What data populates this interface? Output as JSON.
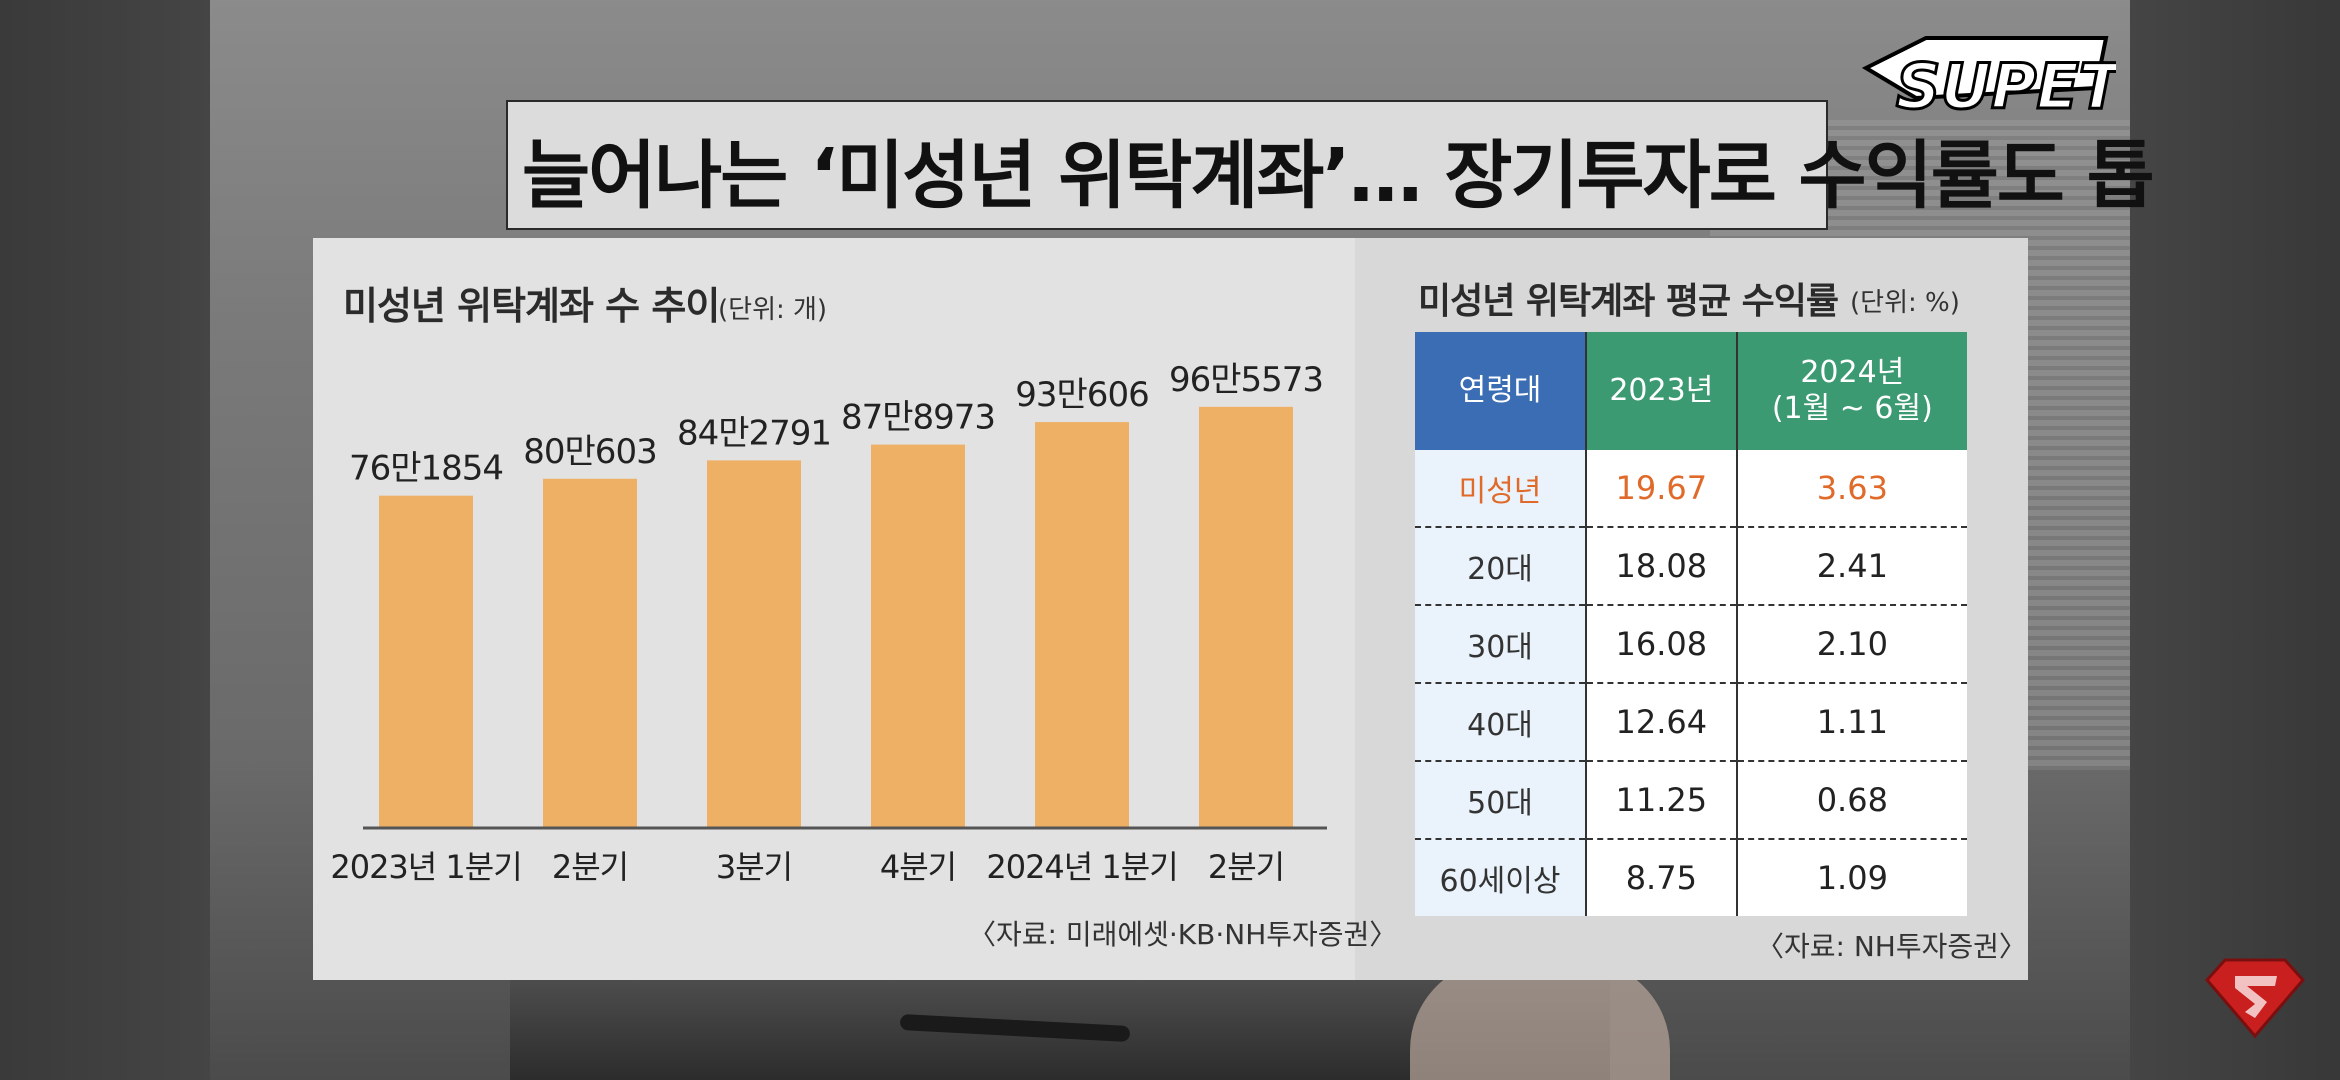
{
  "headline": "늘어나는 ‘미성년 위탁계좌’… 장기투자로 수익률도 톱",
  "logo_text": "SUPETV",
  "chart_data": {
    "type": "bar",
    "title": "미성년 위탁계좌 수 추이",
    "unit": "(단위: 개)",
    "categories": [
      "2023년 1분기",
      "2분기",
      "3분기",
      "4분기",
      "2024년 1분기",
      "2분기"
    ],
    "values": [
      761854,
      800603,
      842791,
      878973,
      930606,
      965573
    ],
    "data_labels": [
      "76만1854",
      "80만603",
      "84만2791",
      "87만8973",
      "93만606",
      "96만5573"
    ],
    "ylim": [
      0,
      1050000
    ],
    "bar_color": "#eeb064",
    "source": "〈자료: 미래에셋·KB·NH투자증권〉"
  },
  "returns_table": {
    "title": "미성년 위탁계좌 평균 수익률",
    "unit": "(단위: %)",
    "headers": [
      "연령대",
      "2023년",
      "2024년\n(1월 ~ 6월)"
    ],
    "rows": [
      [
        "미성년",
        "19.67",
        "3.63"
      ],
      [
        "20대",
        "18.08",
        "2.41"
      ],
      [
        "30대",
        "16.08",
        "2.10"
      ],
      [
        "40대",
        "12.64",
        "1.11"
      ],
      [
        "50대",
        "11.25",
        "0.68"
      ],
      [
        "60세이상",
        "8.75",
        "1.09"
      ]
    ],
    "highlight_color": "#e06a2a",
    "source": "〈자료: NH투자증권〉"
  }
}
